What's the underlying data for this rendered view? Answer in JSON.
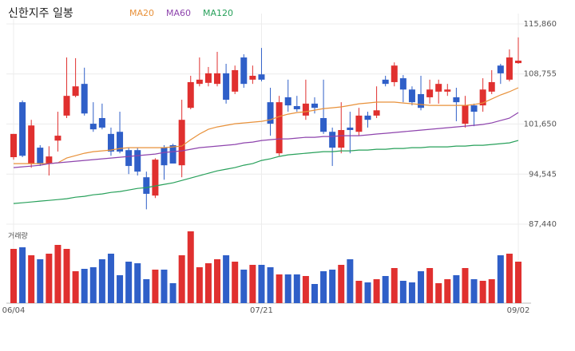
{
  "chart_data": {
    "type": "candlestick",
    "title": "신한지주 일봉",
    "categories": [
      "06/04",
      null,
      null,
      null,
      null,
      null,
      null,
      null,
      null,
      null,
      null,
      null,
      null,
      null,
      null,
      null,
      null,
      null,
      null,
      null,
      null,
      null,
      null,
      null,
      null,
      null,
      null,
      null,
      "07/21",
      null,
      null,
      null,
      null,
      null,
      null,
      null,
      null,
      null,
      null,
      null,
      null,
      null,
      null,
      null,
      null,
      null,
      null,
      null,
      null,
      null,
      null,
      null,
      null,
      null,
      null,
      null,
      null,
      "09/02"
    ],
    "up_color": "#e0302f",
    "down_color": "#2f5fc8",
    "ohlc": {
      "open": [
        96950,
        104750,
        96050,
        98300,
        96050,
        99300,
        102850,
        105650,
        107350,
        101700,
        102500,
        100250,
        100550,
        97950,
        97950,
        94100,
        91500,
        98300,
        98650,
        95800,
        103950,
        107350,
        107500,
        107350,
        108850,
        106250,
        111100,
        107950,
        108700,
        104750,
        97500,
        105450,
        104200,
        102850,
        104550,
        102500,
        100550,
        98300,
        101150,
        100550,
        102850,
        102850,
        107950,
        107600,
        108150,
        106550,
        105900,
        105450,
        106250,
        106250,
        105450,
        101700,
        104300,
        104300,
        106250,
        109950,
        107950,
        110300
      ],
      "high": [
        100250,
        105000,
        102250,
        98650,
        98500,
        103400,
        111100,
        111000,
        109650,
        104750,
        104550,
        101150,
        103400,
        98300,
        98300,
        94900,
        96800,
        98650,
        98850,
        105100,
        108500,
        111100,
        109750,
        111900,
        110200,
        109950,
        111550,
        109950,
        112450,
        106800,
        105650,
        107950,
        105650,
        107950,
        105450,
        107950,
        101150,
        104750,
        103400,
        103950,
        103400,
        107000,
        108500,
        110400,
        108600,
        107000,
        108500,
        107950,
        107950,
        107350,
        106800,
        105650,
        104550,
        108150,
        109300,
        110200,
        112250,
        113950
      ],
      "low": [
        96600,
        96950,
        95450,
        95700,
        94350,
        97750,
        102500,
        105450,
        102850,
        100550,
        100900,
        97150,
        97500,
        94550,
        94350,
        89550,
        91150,
        93750,
        96050,
        94100,
        103750,
        107000,
        107000,
        107000,
        104550,
        105900,
        106800,
        107350,
        107700,
        100000,
        97150,
        103400,
        103400,
        102250,
        103150,
        100250,
        95700,
        97500,
        97500,
        100000,
        101150,
        102500,
        107000,
        107000,
        104750,
        104300,
        103600,
        104550,
        104550,
        105650,
        102050,
        101150,
        101350,
        103400,
        105900,
        107350,
        107700,
        110200
      ],
      "close": [
        100250,
        97150,
        101450,
        96050,
        97050,
        100000,
        105650,
        107000,
        103150,
        100900,
        101150,
        97750,
        97750,
        95700,
        94900,
        91750,
        96600,
        95800,
        96050,
        102250,
        107600,
        107950,
        108850,
        108850,
        105100,
        109300,
        107350,
        108500,
        107950,
        101700,
        104750,
        104300,
        103750,
        104550,
        103950,
        100550,
        98300,
        100800,
        100800,
        102850,
        102250,
        103600,
        107350,
        109950,
        106550,
        104750,
        103950,
        106550,
        107350,
        106550,
        104750,
        104300,
        103400,
        106550,
        107600,
        108850,
        111100,
        110650
      ]
    },
    "series": [
      {
        "name": "MA20",
        "color": "#e8913a",
        "values": [
          96030,
          96030,
          96030,
          96030,
          96030,
          96150,
          96830,
          97170,
          97510,
          97730,
          97850,
          97960,
          98190,
          98300,
          98300,
          98300,
          98300,
          98300,
          98410,
          98530,
          99430,
          100230,
          100900,
          101240,
          101470,
          101700,
          101810,
          101920,
          102040,
          102260,
          102720,
          103060,
          103280,
          103400,
          103620,
          103850,
          103960,
          104080,
          104300,
          104530,
          104640,
          104760,
          104760,
          104760,
          104640,
          104530,
          104420,
          104300,
          104300,
          104300,
          104300,
          104300,
          104420,
          104640,
          105210,
          105780,
          106230,
          106800
        ]
      },
      {
        "name": "MA60",
        "color": "#8e44ad",
        "values": [
          95470,
          95580,
          95690,
          95810,
          96030,
          96150,
          96260,
          96370,
          96490,
          96600,
          96710,
          96830,
          96940,
          97050,
          97170,
          97280,
          97390,
          97620,
          97730,
          97850,
          98070,
          98300,
          98410,
          98530,
          98640,
          98750,
          98980,
          99090,
          99320,
          99430,
          99540,
          99540,
          99660,
          99770,
          99770,
          99880,
          99880,
          100000,
          100000,
          100000,
          100110,
          100230,
          100340,
          100450,
          100560,
          100680,
          100790,
          100900,
          101020,
          101130,
          101240,
          101360,
          101470,
          101590,
          101810,
          102150,
          102490,
          103280
        ]
      },
      {
        "name": "MA120",
        "color": "#27a05a",
        "values": [
          90370,
          90480,
          90590,
          90710,
          90820,
          90930,
          91050,
          91270,
          91390,
          91610,
          91730,
          91950,
          92070,
          92290,
          92520,
          92630,
          92860,
          93090,
          93310,
          93650,
          93990,
          94330,
          94670,
          95010,
          95240,
          95470,
          95810,
          96030,
          96490,
          96710,
          97050,
          97280,
          97390,
          97510,
          97620,
          97730,
          97730,
          97850,
          97850,
          97960,
          97960,
          98070,
          98070,
          98190,
          98190,
          98300,
          98300,
          98410,
          98410,
          98410,
          98530,
          98530,
          98640,
          98640,
          98750,
          98860,
          98980,
          99320
        ]
      }
    ],
    "ylim": [
      86990,
      117330
    ],
    "yticks": [
      {
        "value": 115860,
        "label": "115,860"
      },
      {
        "value": 108755,
        "label": "108,755"
      },
      {
        "value": 101650,
        "label": "101,650"
      },
      {
        "value": 94545,
        "label": "94,545"
      },
      {
        "value": 87440,
        "label": "87,440"
      }
    ],
    "grid": true,
    "volume": {
      "label": "거래량",
      "ylim": [
        0,
        90
      ],
      "values": [
        68,
        70,
        60,
        55,
        62,
        73,
        68,
        40,
        43,
        45,
        55,
        62,
        35,
        52,
        50,
        30,
        42,
        42,
        25,
        60,
        90,
        45,
        50,
        55,
        60,
        52,
        42,
        48,
        48,
        45,
        36,
        36,
        36,
        34,
        24,
        40,
        42,
        48,
        55,
        28,
        26,
        30,
        34,
        44,
        28,
        26,
        40,
        44,
        25,
        30,
        35,
        44,
        30,
        28,
        30,
        60,
        62,
        52
      ]
    }
  }
}
